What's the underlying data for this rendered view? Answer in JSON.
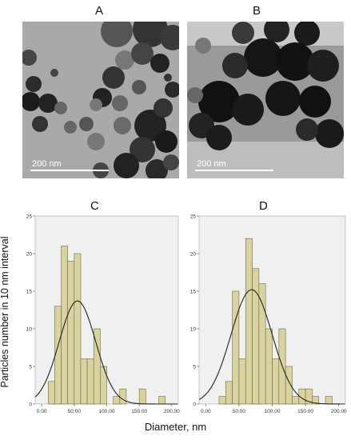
{
  "panels": {
    "a": {
      "letter": "A",
      "scale_label": "200 nm"
    },
    "b": {
      "letter": "B",
      "scale_label": "200 nm"
    },
    "c": {
      "letter": "C"
    },
    "d": {
      "letter": "D"
    }
  },
  "axis": {
    "ylabel": "Particles number in 10 nm interval",
    "xlabel": "Diameter, nm"
  },
  "colors": {
    "bar_fill": "#d8d3a0",
    "bar_stroke": "#6e6a44",
    "plot_bg": "#f0f0f0",
    "curve": "#222222"
  },
  "chart_data": [
    {
      "type": "bar",
      "panel": "C",
      "title": "",
      "xlabel": "Diameter, nm",
      "ylabel": "Particles number in 10 nm interval",
      "xlim": [
        -10,
        210
      ],
      "ylim": [
        0,
        25
      ],
      "x_ticks": [
        "0.00",
        "50.00",
        "100.00",
        "150.00",
        "200.00"
      ],
      "y_ticks": [
        "0",
        "5",
        "10",
        "15",
        "20",
        "25"
      ],
      "bin_width": 10,
      "bins_start": [
        10,
        20,
        30,
        40,
        50,
        60,
        70,
        80,
        90,
        100,
        110,
        120,
        130,
        140,
        150,
        160,
        170,
        180
      ],
      "values": [
        3,
        13,
        21,
        19,
        20,
        6,
        6,
        10,
        5,
        0,
        1,
        2,
        0,
        0,
        2,
        0,
        0,
        1
      ],
      "normal_curve": {
        "mean": 55,
        "sd": 28,
        "peak": 13.7
      }
    },
    {
      "type": "bar",
      "panel": "D",
      "title": "",
      "xlabel": "Diameter, nm",
      "ylabel": "Particles number in 10 nm interval",
      "xlim": [
        -10,
        210
      ],
      "ylim": [
        0,
        25
      ],
      "x_ticks": [
        "0.00",
        "50.00",
        "100.00",
        "150.00",
        "200.00"
      ],
      "y_ticks": [
        "0",
        "5",
        "10",
        "15",
        "20",
        "25"
      ],
      "bin_width": 10,
      "bins_start": [
        20,
        30,
        40,
        50,
        60,
        70,
        80,
        90,
        100,
        110,
        120,
        130,
        140,
        150,
        160,
        170,
        180
      ],
      "values": [
        1,
        3,
        15,
        6,
        22,
        18,
        16,
        10,
        6,
        10,
        5,
        1,
        2,
        2,
        1,
        0,
        1
      ],
      "normal_curve": {
        "mean": 69,
        "sd": 31,
        "peak": 15.2
      }
    }
  ]
}
